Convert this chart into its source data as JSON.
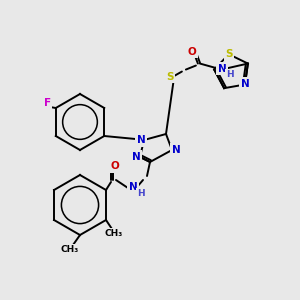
{
  "background_color": "#e8e8e8",
  "atom_colors": {
    "C": "#000000",
    "N": "#0000cc",
    "O": "#cc0000",
    "S": "#bbbb00",
    "F": "#cc00cc",
    "H": "#4444cc"
  },
  "bond_color": "#000000",
  "figsize": [
    3.0,
    3.0
  ],
  "dpi": 100,
  "lw": 1.4,
  "fs": 7.5
}
